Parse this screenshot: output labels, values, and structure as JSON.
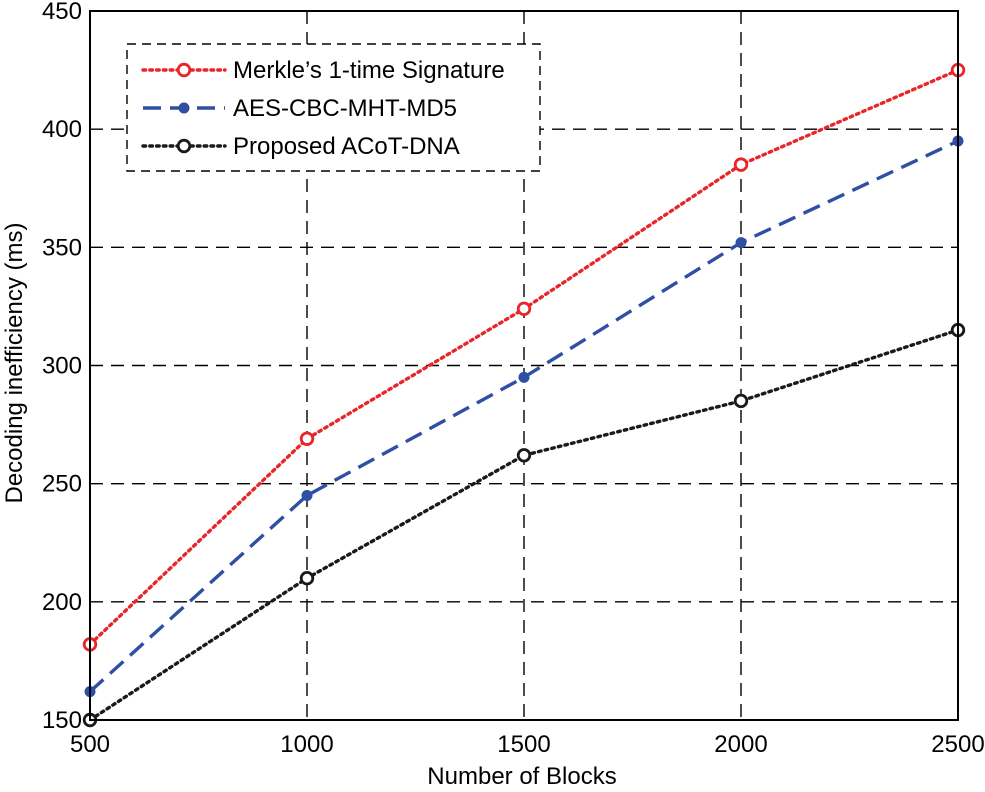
{
  "chart_data": {
    "type": "line",
    "title": "",
    "xlabel": "Number of Blocks",
    "ylabel": "Decoding inefficiency (ms)",
    "x": [
      500,
      1000,
      1500,
      2000,
      2500
    ],
    "xlim": [
      500,
      2500
    ],
    "ylim": [
      150,
      450
    ],
    "xticks": [
      "500",
      "1000",
      "1500",
      "2000",
      "2500"
    ],
    "yticks": [
      "150",
      "200",
      "250",
      "300",
      "350",
      "400",
      "450"
    ],
    "grid": true,
    "legend_position": "top-left",
    "series": [
      {
        "name": "Merkle’s 1-time Signature",
        "values": [
          182,
          269,
          324,
          385,
          425
        ],
        "color": "#e8262a",
        "line_style": "dotted",
        "marker": "open-circle"
      },
      {
        "name": "AES-CBC-MHT-MD5",
        "values": [
          162,
          245,
          295,
          352,
          395
        ],
        "color": "#2e4fa3",
        "line_style": "dashed",
        "marker": "filled-dot"
      },
      {
        "name": "Proposed ACoT-DNA",
        "values": [
          150,
          210,
          262,
          285,
          315
        ],
        "color": "#1a1a1a",
        "line_style": "dotted",
        "marker": "open-circle"
      }
    ]
  }
}
